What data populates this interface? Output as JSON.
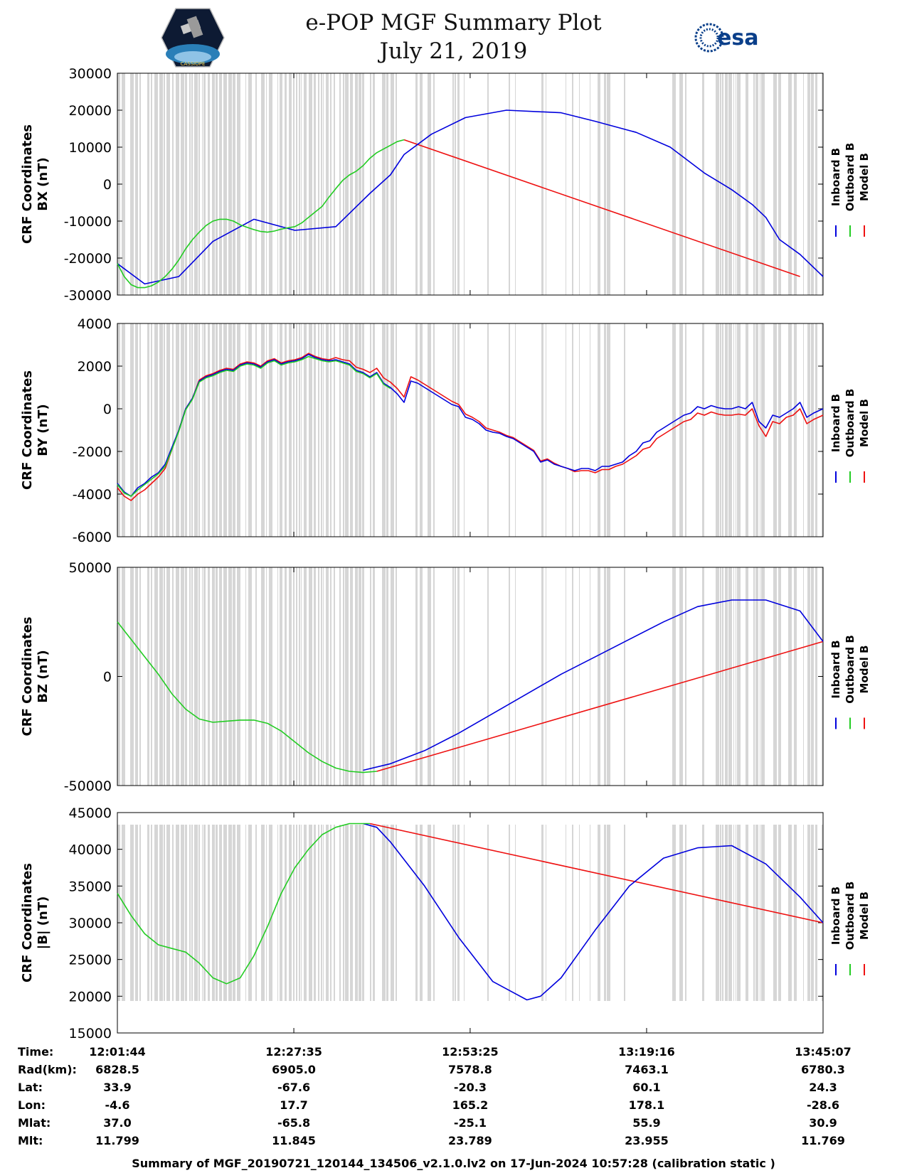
{
  "header": {
    "title": "e-POP MGF Summary Plot",
    "date": "July 21, 2019",
    "left_logo_text": "CASSIOPE",
    "right_logo_text": "esa"
  },
  "legend": [
    {
      "label": "Inboard B",
      "color": "#0000dd"
    },
    {
      "label": "Outboard B",
      "color": "#22cc22"
    },
    {
      "label": "Model B",
      "color": "#ee1111"
    }
  ],
  "chart_data": [
    {
      "type": "line",
      "title": "",
      "ylabel": [
        "CRF Coordinates",
        "BX (nT)"
      ],
      "xlabel": "",
      "ylim": [
        -30000,
        30000
      ],
      "yticks": [
        30000,
        20000,
        10000,
        0,
        -10000,
        -20000,
        -30000
      ],
      "ytick_labels": [
        "30000",
        "20000",
        "10000",
        "0",
        "-10000",
        "-20000",
        "-30000"
      ],
      "x_range_minutes": [
        0,
        103.38
      ],
      "green_until_minutes": 42,
      "series": [
        {
          "name": "Inboard B",
          "color": "#0000dd",
          "x": [
            0,
            4,
            9,
            14,
            20,
            26,
            32,
            37,
            40,
            42,
            46,
            51,
            57,
            65,
            70,
            76,
            81,
            86,
            90,
            93,
            95,
            97,
            100,
            103.38
          ],
          "values": [
            -21500,
            -27000,
            -25000,
            -15500,
            -9500,
            -12500,
            -11500,
            -2500,
            2500,
            8000,
            13500,
            18000,
            20000,
            19300,
            17000,
            14000,
            10000,
            3000,
            -1500,
            -5500,
            -9000,
            -15000,
            -19000,
            -25000
          ]
        },
        {
          "name": "Outboard B",
          "color": "#22cc22",
          "x": [
            0,
            1,
            2,
            3,
            4,
            5,
            6,
            7,
            8,
            9,
            10,
            11,
            12,
            13,
            14,
            15,
            16,
            17,
            18,
            19,
            20,
            21,
            22,
            23,
            24,
            25,
            26,
            27,
            28,
            29,
            30,
            31,
            32,
            33,
            34,
            35,
            36,
            37,
            38,
            39,
            40,
            41,
            42
          ],
          "values": [
            -21500,
            -25000,
            -27200,
            -28000,
            -28000,
            -27500,
            -26500,
            -25000,
            -23000,
            -20500,
            -17500,
            -15000,
            -13000,
            -11200,
            -10000,
            -9500,
            -9500,
            -10000,
            -11000,
            -11700,
            -12300,
            -12800,
            -13000,
            -12700,
            -12200,
            -11800,
            -11500,
            -10500,
            -9000,
            -7500,
            -6000,
            -3500,
            -1200,
            1000,
            2500,
            3500,
            5000,
            7000,
            8500,
            9500,
            10500,
            11500,
            12000
          ]
        },
        {
          "name": "Model B",
          "color": "#ee1111",
          "x": [
            42,
            100
          ],
          "values": [
            12000,
            -25000
          ]
        }
      ]
    },
    {
      "type": "line",
      "title": "",
      "ylabel": [
        "CRF Coordinates",
        "BY (nT)"
      ],
      "xlabel": "",
      "ylim": [
        -6000,
        4000
      ],
      "yticks": [
        4000,
        2000,
        0,
        -2000,
        -4000,
        -6000
      ],
      "ytick_labels": [
        "4000",
        "2000",
        "0",
        "-2000",
        "-4000",
        "-6000"
      ],
      "x_range_minutes": [
        0,
        103.38
      ],
      "series": [
        {
          "name": "Inboard B",
          "color": "#0000dd",
          "x": [
            0,
            1,
            2,
            3,
            4,
            5,
            6,
            7,
            8,
            9,
            10,
            11,
            12,
            13,
            14,
            15,
            16,
            17,
            18,
            19,
            20,
            21,
            22,
            23,
            24,
            25,
            26,
            27,
            28,
            29,
            30,
            31,
            32,
            33,
            34,
            35,
            36,
            37,
            38,
            39,
            40,
            41,
            42,
            43,
            44,
            45,
            46,
            47,
            48,
            49,
            50,
            51,
            52,
            53,
            54,
            55,
            56,
            57,
            58,
            59,
            60,
            61,
            62,
            63,
            64,
            65,
            66,
            67,
            68,
            69,
            70,
            71,
            72,
            73,
            74,
            75,
            76,
            77,
            78,
            79,
            80,
            81,
            82,
            83,
            84,
            85,
            86,
            87,
            88,
            89,
            90,
            91,
            92,
            93,
            94,
            95,
            96,
            97,
            98,
            99,
            100,
            101,
            102,
            103.38
          ],
          "values": [
            -3500,
            -3900,
            -4100,
            -3700,
            -3500,
            -3200,
            -3000,
            -2600,
            -1800,
            -1000,
            0,
            500,
            1300,
            1500,
            1600,
            1750,
            1850,
            1800,
            2050,
            2150,
            2100,
            1950,
            2200,
            2300,
            2100,
            2200,
            2250,
            2350,
            2550,
            2400,
            2300,
            2250,
            2300,
            2200,
            2100,
            1800,
            1700,
            1500,
            1700,
            1200,
            1000,
            700,
            300,
            1300,
            1200,
            1000,
            800,
            600,
            400,
            200,
            100,
            -400,
            -500,
            -700,
            -1000,
            -1100,
            -1150,
            -1300,
            -1400,
            -1600,
            -1800,
            -2000,
            -2500,
            -2400,
            -2600,
            -2700,
            -2800,
            -2900,
            -2800,
            -2800,
            -2900,
            -2700,
            -2700,
            -2600,
            -2500,
            -2200,
            -2000,
            -1600,
            -1500,
            -1100,
            -900,
            -700,
            -500,
            -300,
            -200,
            100,
            0,
            150,
            50,
            0,
            0,
            100,
            0,
            300,
            -600,
            -900,
            -300,
            -400,
            -200,
            0,
            300,
            -400,
            -200,
            0
          ]
        },
        {
          "name": "Outboard B",
          "color": "#22cc22",
          "x": [
            0,
            1,
            2,
            3,
            4,
            5,
            6,
            7,
            8,
            9,
            10,
            11,
            12,
            13,
            14,
            15,
            16,
            17,
            18,
            19,
            20,
            21,
            22,
            23,
            24,
            25,
            26,
            27,
            28,
            29,
            30,
            31,
            32,
            33,
            34,
            35,
            36,
            37,
            38,
            39,
            40
          ],
          "values": [
            -3550,
            -3950,
            -4100,
            -3800,
            -3550,
            -3300,
            -3050,
            -2700,
            -1900,
            -1050,
            -50,
            450,
            1250,
            1450,
            1550,
            1700,
            1800,
            1750,
            2000,
            2100,
            2050,
            1900,
            2150,
            2250,
            2050,
            2150,
            2200,
            2300,
            2450,
            2350,
            2250,
            2200,
            2250,
            2150,
            2050,
            1750,
            1650,
            1450,
            1650,
            1150,
            950
          ]
        },
        {
          "name": "Model B",
          "color": "#ee1111",
          "x": [
            0,
            1,
            2,
            3,
            4,
            5,
            6,
            7,
            8,
            9,
            10,
            11,
            12,
            13,
            14,
            15,
            16,
            17,
            18,
            19,
            20,
            21,
            22,
            23,
            24,
            25,
            26,
            27,
            28,
            29,
            30,
            31,
            32,
            33,
            34,
            35,
            36,
            37,
            38,
            39,
            40,
            41,
            42,
            43,
            44,
            45,
            46,
            47,
            48,
            49,
            50,
            51,
            52,
            53,
            54,
            55,
            56,
            57,
            58,
            59,
            60,
            61,
            62,
            63,
            64,
            65,
            66,
            67,
            68,
            69,
            70,
            71,
            72,
            73,
            74,
            75,
            76,
            77,
            78,
            79,
            80,
            81,
            82,
            83,
            84,
            85,
            86,
            87,
            88,
            89,
            90,
            91,
            92,
            93,
            94,
            95,
            96,
            97,
            98,
            99,
            100,
            101,
            102,
            103.38
          ],
          "values": [
            -3700,
            -4100,
            -4300,
            -4000,
            -3800,
            -3500,
            -3200,
            -2800,
            -1900,
            -1000,
            0,
            500,
            1350,
            1550,
            1650,
            1800,
            1900,
            1850,
            2100,
            2200,
            2150,
            2000,
            2250,
            2350,
            2150,
            2250,
            2300,
            2400,
            2600,
            2450,
            2350,
            2300,
            2400,
            2300,
            2250,
            1950,
            1850,
            1700,
            1900,
            1450,
            1250,
            950,
            550,
            1500,
            1350,
            1150,
            950,
            750,
            550,
            350,
            200,
            -250,
            -400,
            -600,
            -900,
            -1000,
            -1100,
            -1250,
            -1350,
            -1550,
            -1750,
            -1950,
            -2450,
            -2350,
            -2550,
            -2700,
            -2800,
            -2950,
            -2900,
            -2900,
            -3000,
            -2850,
            -2850,
            -2700,
            -2600,
            -2400,
            -2200,
            -1900,
            -1800,
            -1400,
            -1200,
            -1000,
            -800,
            -600,
            -500,
            -200,
            -300,
            -150,
            -250,
            -300,
            -300,
            -250,
            -300,
            0,
            -800,
            -1300,
            -600,
            -700,
            -400,
            -300,
            0,
            -700,
            -500,
            -300
          ]
        }
      ]
    },
    {
      "type": "line",
      "title": "",
      "ylabel": [
        "CRF Coordinates",
        "BZ (nT)"
      ],
      "xlabel": "",
      "ylim": [
        -50000,
        50000
      ],
      "yticks": [
        50000,
        0,
        -50000
      ],
      "ytick_labels": [
        "50000",
        "0",
        "-50000"
      ],
      "x_range_minutes": [
        0,
        103.38
      ],
      "series": [
        {
          "name": "Inboard B",
          "color": "#0000dd",
          "x": [
            36,
            40,
            45,
            50,
            55,
            60,
            65,
            70,
            75,
            80,
            85,
            90,
            95,
            100,
            103.38
          ],
          "values": [
            -43000,
            -40000,
            -34000,
            -26000,
            -17000,
            -8000,
            1000,
            9000,
            17000,
            25000,
            32000,
            35000,
            35000,
            30000,
            16000
          ]
        },
        {
          "name": "Outboard B",
          "color": "#22cc22",
          "x": [
            0,
            2,
            4,
            6,
            8,
            10,
            12,
            14,
            16,
            18,
            20,
            22,
            24,
            26,
            28,
            30,
            32,
            34,
            36,
            38
          ],
          "values": [
            25000,
            17000,
            9000,
            1000,
            -8000,
            -15000,
            -19500,
            -21000,
            -20500,
            -20000,
            -20000,
            -21500,
            -25000,
            -30000,
            -35000,
            -39000,
            -42000,
            -43500,
            -44000,
            -43500
          ]
        },
        {
          "name": "Model B",
          "color": "#ee1111",
          "x": [
            38,
            103.38
          ],
          "values": [
            -43500,
            16000
          ]
        }
      ]
    },
    {
      "type": "line",
      "title": "",
      "ylabel": [
        "CRF Coordinates",
        "|B| (nT)"
      ],
      "xlabel": "",
      "ylim": [
        15000,
        45000
      ],
      "yticks": [
        45000,
        40000,
        35000,
        30000,
        25000,
        20000,
        15000
      ],
      "ytick_labels": [
        "45000",
        "40000",
        "35000",
        "30000",
        "25000",
        "20000",
        "15000"
      ],
      "x_range_minutes": [
        0,
        103.38
      ],
      "series": [
        {
          "name": "Inboard B",
          "color": "#0000dd",
          "x": [
            36,
            38,
            40,
            45,
            50,
            55,
            60,
            62,
            65,
            70,
            75,
            80,
            85,
            90,
            95,
            100,
            103.38
          ],
          "values": [
            43500,
            43000,
            41000,
            35000,
            28000,
            22000,
            19500,
            20000,
            22500,
            29000,
            35000,
            38800,
            40200,
            40500,
            38000,
            33500,
            30000
          ]
        },
        {
          "name": "Outboard B",
          "color": "#22cc22",
          "x": [
            0,
            2,
            4,
            6,
            8,
            10,
            12,
            14,
            16,
            18,
            20,
            22,
            24,
            26,
            28,
            30,
            32,
            34,
            36,
            37
          ],
          "values": [
            34000,
            31000,
            28500,
            27000,
            26500,
            26000,
            24500,
            22500,
            21700,
            22500,
            25500,
            29500,
            34000,
            37500,
            40000,
            42000,
            43000,
            43500,
            43500,
            43500
          ]
        },
        {
          "name": "Model B",
          "color": "#ee1111",
          "x": [
            37,
            103.38
          ],
          "values": [
            43500,
            30000
          ]
        }
      ]
    }
  ],
  "x_axis_ticks": [
    "12:01:44",
    "12:27:35",
    "12:53:25",
    "13:19:16",
    "13:45:07"
  ],
  "x_axis_tick_minutes": [
    0,
    25.85,
    51.68,
    77.53,
    103.38
  ],
  "ephemeris": {
    "rows": [
      {
        "label": "Time:",
        "values": [
          "12:01:44",
          "12:27:35",
          "12:53:25",
          "13:19:16",
          "13:45:07"
        ]
      },
      {
        "label": "Rad(km):",
        "values": [
          "6828.5",
          "6905.0",
          "7578.8",
          "7463.1",
          "6780.3"
        ]
      },
      {
        "label": "Lat:",
        "values": [
          "33.9",
          "-67.6",
          "-20.3",
          "60.1",
          "24.3"
        ]
      },
      {
        "label": "Lon:",
        "values": [
          "-4.6",
          "17.7",
          "165.2",
          "178.1",
          "-28.6"
        ]
      },
      {
        "label": "Mlat:",
        "values": [
          "37.0",
          "-65.8",
          "-25.1",
          "55.9",
          "30.9"
        ]
      },
      {
        "label": "Mlt:",
        "values": [
          "11.799",
          "11.845",
          "23.789",
          "23.955",
          "11.769"
        ]
      }
    ]
  },
  "footer": "Summary of MGF_20190721_120144_134506_v2.1.0.lv2 on 17-Jun-2024 10:57:28 (calibration static )"
}
